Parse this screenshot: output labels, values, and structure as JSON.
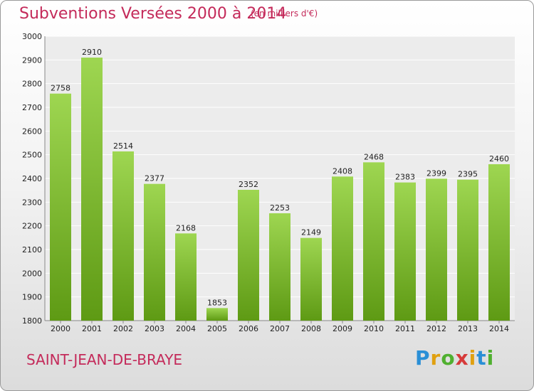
{
  "header": {
    "title": "Subventions Versées 2000 à 2014",
    "subtitle": "(en milliers d'€)"
  },
  "footer": {
    "city": "SAINT-JEAN-DE-BRAYE",
    "logo": "Proxiti"
  },
  "colors": {
    "title": "#c42a5a",
    "bar_top": "#9ed651",
    "bar_bottom": "#5e9a14"
  },
  "chart_data": {
    "type": "bar",
    "title": "Subventions Versées 2000 à 2014",
    "subtitle": "(en milliers d'€)",
    "categories": [
      "2000",
      "2001",
      "2002",
      "2003",
      "2004",
      "2005",
      "2006",
      "2007",
      "2008",
      "2009",
      "2010",
      "2011",
      "2012",
      "2013",
      "2014"
    ],
    "values": [
      2758,
      2910,
      2514,
      2377,
      2168,
      1853,
      2352,
      2253,
      2149,
      2408,
      2468,
      2383,
      2399,
      2395,
      2460
    ],
    "ylim": [
      1800,
      3000
    ],
    "yticks": [
      1800,
      1900,
      2000,
      2100,
      2200,
      2300,
      2400,
      2500,
      2600,
      2700,
      2800,
      2900,
      3000
    ],
    "grid": true,
    "data_labels": true,
    "xlabel": "",
    "ylabel": ""
  }
}
